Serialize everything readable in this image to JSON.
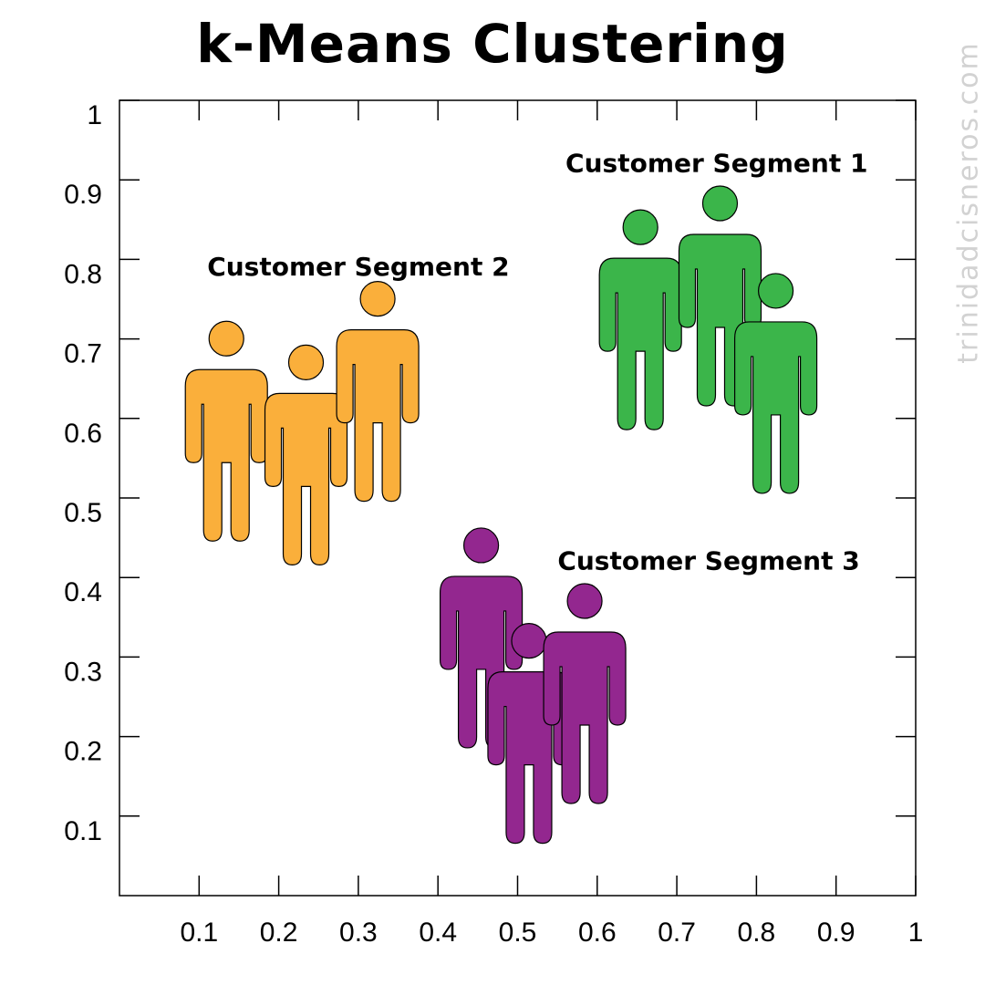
{
  "title": "k-Means Clustering",
  "watermark": "trinidadcisneros.com",
  "chart_data": {
    "type": "scatter",
    "title": "k-Means Clustering",
    "xlabel": "",
    "ylabel": "",
    "xlim": [
      0,
      1
    ],
    "ylim": [
      0,
      1
    ],
    "x_ticks": [
      "0.1",
      "0.2",
      "0.3",
      "0.4",
      "0.5",
      "0.6",
      "0.7",
      "0.8",
      "0.9",
      "1"
    ],
    "y_ticks": [
      "0.1",
      "0.2",
      "0.3",
      "0.4",
      "0.5",
      "0.6",
      "0.7",
      "0.8",
      "0.9",
      "1"
    ],
    "grid": false,
    "marker": "person-icon",
    "series": [
      {
        "name": "Customer Segment 1",
        "color": "#3bb54a",
        "points": [
          {
            "x": 0.66,
            "y": 0.72
          },
          {
            "x": 0.76,
            "y": 0.75
          },
          {
            "x": 0.83,
            "y": 0.64
          }
        ],
        "label_anchor": {
          "x": 0.75,
          "y": 0.91
        }
      },
      {
        "name": "Customer Segment 2",
        "color": "#faaf3b",
        "points": [
          {
            "x": 0.14,
            "y": 0.58
          },
          {
            "x": 0.24,
            "y": 0.55
          },
          {
            "x": 0.33,
            "y": 0.63
          }
        ],
        "label_anchor": {
          "x": 0.3,
          "y": 0.78
        }
      },
      {
        "name": "Customer Segment 3",
        "color": "#93278f",
        "points": [
          {
            "x": 0.46,
            "y": 0.32
          },
          {
            "x": 0.52,
            "y": 0.2
          },
          {
            "x": 0.59,
            "y": 0.25
          }
        ],
        "label_anchor": {
          "x": 0.74,
          "y": 0.41
        }
      }
    ]
  }
}
